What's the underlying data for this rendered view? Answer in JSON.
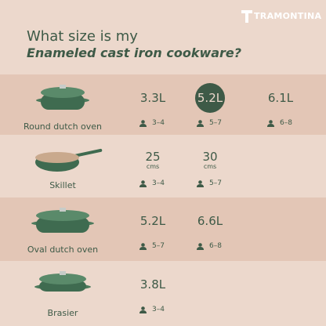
{
  "brand": "TRAMONTINA",
  "title": {
    "line1": "What size is my",
    "line2": "Enameled cast iron cookware?"
  },
  "rows": [
    {
      "name": "Round dutch oven",
      "sizes": [
        {
          "size": "3.3L",
          "people": "3–4"
        },
        {
          "size": "5.2L",
          "people": "5–7",
          "highlighted": true
        },
        {
          "size": "6.1L",
          "people": "6–8"
        }
      ]
    },
    {
      "name": "Skillet",
      "sizes": [
        {
          "size": "25",
          "unit": "cms",
          "people": "3–4"
        },
        {
          "size": "30",
          "unit": "cms",
          "people": "5–7"
        }
      ]
    },
    {
      "name": "Oval dutch oven",
      "sizes": [
        {
          "size": "5.2L",
          "people": "5–7"
        },
        {
          "size": "6.6L",
          "people": "6–8"
        }
      ]
    },
    {
      "name": "Brasier",
      "sizes": [
        {
          "size": "3.8L",
          "people": "3–4"
        }
      ]
    }
  ]
}
